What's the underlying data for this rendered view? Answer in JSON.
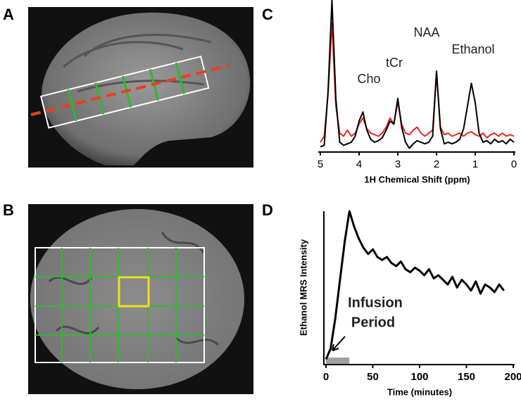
{
  "panel_labels": [
    "A",
    "B",
    "C",
    "D"
  ],
  "chart_data": [
    {
      "type": "line",
      "xlabel": "1H Chemical Shift (ppm)",
      "annotations": [
        "Cho",
        "tCr",
        "NAA",
        "Ethanol"
      ],
      "x": [
        5.0,
        4.9,
        4.8,
        4.7,
        4.6,
        4.5,
        4.4,
        4.3,
        4.2,
        4.1,
        4.0,
        3.9,
        3.8,
        3.7,
        3.6,
        3.5,
        3.4,
        3.3,
        3.2,
        3.1,
        3.0,
        2.9,
        2.8,
        2.7,
        2.6,
        2.5,
        2.4,
        2.3,
        2.2,
        2.1,
        2.0,
        1.9,
        1.8,
        1.7,
        1.6,
        1.5,
        1.4,
        1.3,
        1.2,
        1.1,
        1.0,
        0.9,
        0.8,
        0.7,
        0.6,
        0.5,
        0.4,
        0.3,
        0.2,
        0.1,
        0.0
      ],
      "series": [
        {
          "color": "#e8261e",
          "values": [
            6,
            10,
            38,
            85,
            30,
            12,
            10,
            14,
            10,
            12,
            18,
            22,
            15,
            12,
            11,
            10,
            12,
            16,
            22,
            18,
            33,
            18,
            12,
            11,
            14,
            16,
            12,
            10,
            12,
            14,
            52,
            16,
            11,
            12,
            10,
            11,
            12,
            10,
            12,
            13,
            11,
            10,
            12,
            9,
            11,
            12,
            10,
            12,
            10,
            11,
            10
          ]
        },
        {
          "color": "#000000",
          "values": [
            3,
            4,
            40,
            100,
            35,
            6,
            4,
            5,
            6,
            10,
            20,
            26,
            14,
            8,
            6,
            7,
            9,
            14,
            20,
            18,
            35,
            16,
            6,
            2,
            5,
            7,
            6,
            5,
            6,
            10,
            53,
            15,
            5,
            6,
            5,
            6,
            8,
            15,
            30,
            45,
            32,
            12,
            6,
            7,
            5,
            8,
            6,
            7,
            5,
            8,
            6
          ]
        }
      ],
      "xlim": [
        5,
        0
      ],
      "xticks": [
        5,
        4,
        3,
        2,
        1,
        0
      ],
      "ylim": [
        0,
        100
      ]
    },
    {
      "type": "line",
      "xlabel": "Time (minutes)",
      "ylabel": "Ethanol MRS Intensity",
      "annotation": [
        "Infusion",
        "Period"
      ],
      "infusion": [
        0,
        25
      ],
      "infusion_color": "#a0a0a0",
      "x": [
        0,
        5,
        10,
        15,
        20,
        25,
        30,
        35,
        40,
        45,
        50,
        55,
        60,
        65,
        70,
        75,
        80,
        85,
        90,
        95,
        100,
        105,
        110,
        115,
        120,
        125,
        130,
        135,
        140,
        145,
        150,
        155,
        160,
        165,
        170,
        175,
        180,
        185,
        190
      ],
      "series": [
        {
          "color": "#000000",
          "values": [
            3,
            10,
            30,
            55,
            80,
            100,
            90,
            82,
            76,
            72,
            75,
            70,
            68,
            70,
            66,
            64,
            67,
            62,
            60,
            63,
            61,
            58,
            62,
            56,
            58,
            55,
            52,
            57,
            50,
            55,
            52,
            48,
            54,
            46,
            52,
            50,
            47,
            52,
            48
          ]
        }
      ],
      "xlim": [
        0,
        200
      ],
      "xticks": [
        0,
        50,
        100,
        150,
        200
      ],
      "ylim": [
        0,
        100
      ]
    }
  ]
}
